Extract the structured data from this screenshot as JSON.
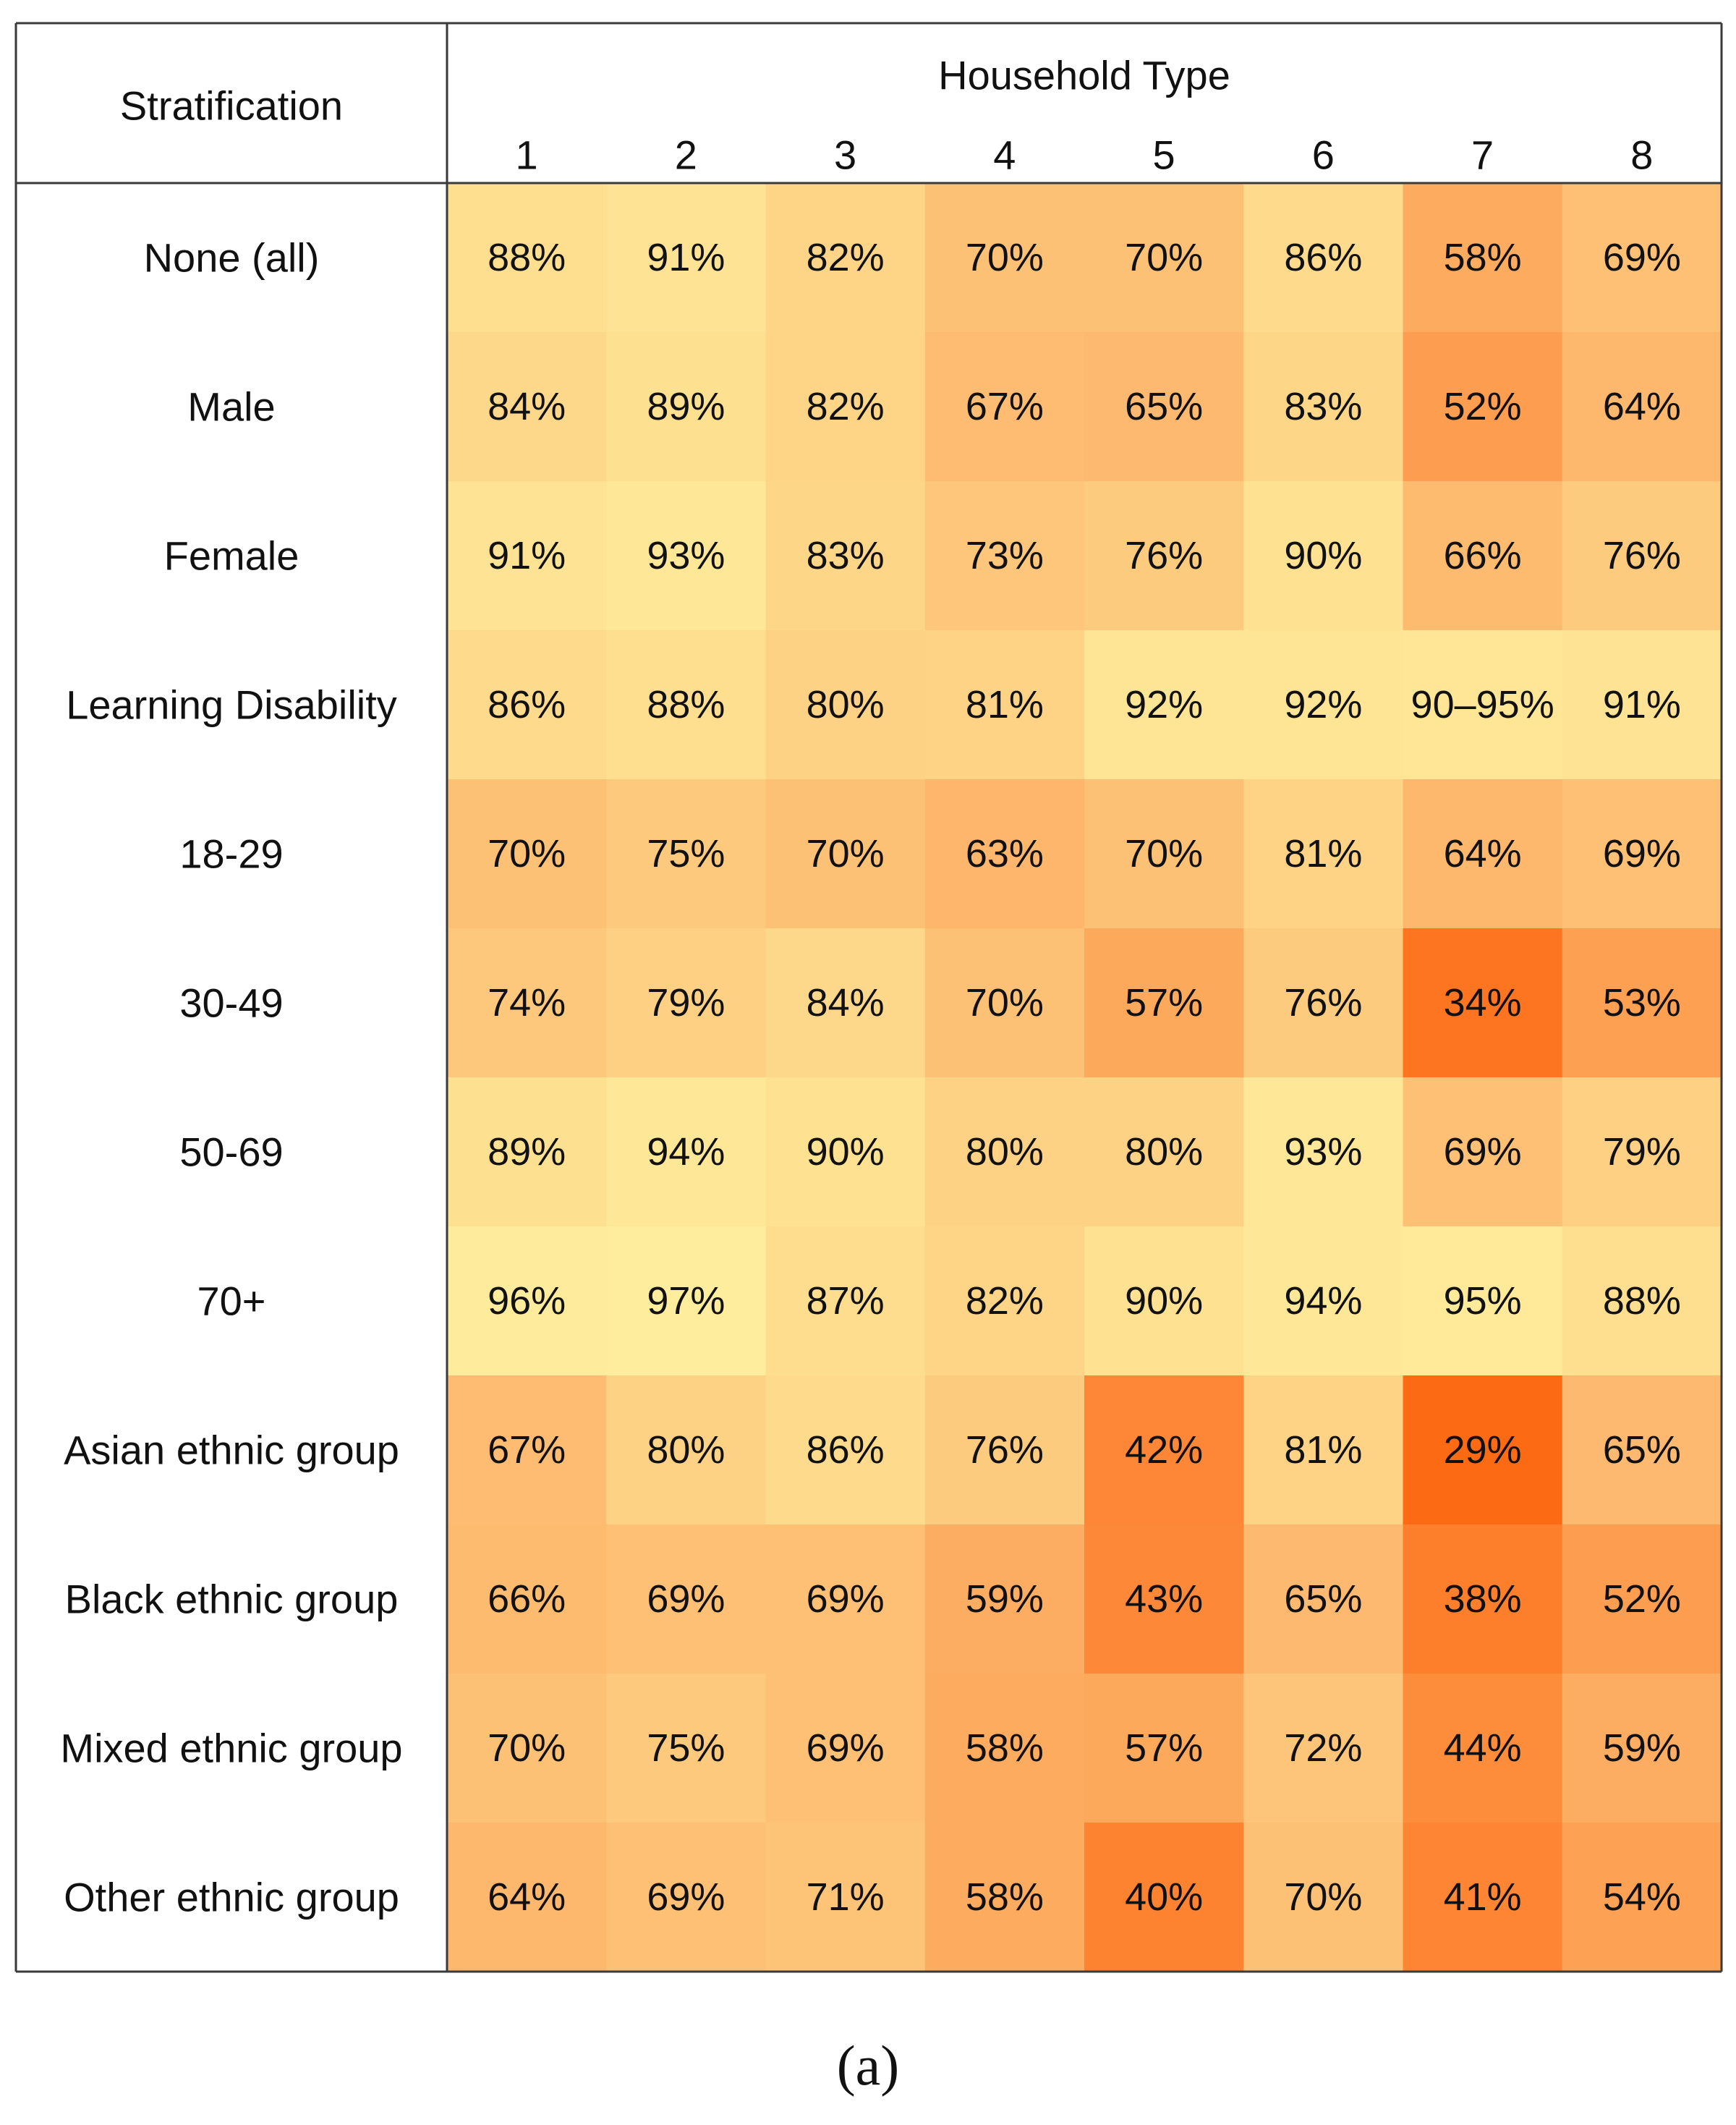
{
  "chart_data": {
    "type": "heatmap",
    "row_header": "Stratification",
    "column_header": "Household Type",
    "columns": [
      "1",
      "2",
      "3",
      "4",
      "5",
      "6",
      "7",
      "8"
    ],
    "rows": [
      {
        "label": "None (all)",
        "values": [
          "88%",
          "91%",
          "82%",
          "70%",
          "70%",
          "86%",
          "58%",
          "69%"
        ]
      },
      {
        "label": "Male",
        "values": [
          "84%",
          "89%",
          "82%",
          "67%",
          "65%",
          "83%",
          "52%",
          "64%"
        ]
      },
      {
        "label": "Female",
        "values": [
          "91%",
          "93%",
          "83%",
          "73%",
          "76%",
          "90%",
          "66%",
          "76%"
        ]
      },
      {
        "label": "Learning Disability",
        "values": [
          "86%",
          "88%",
          "80%",
          "81%",
          "92%",
          "92%",
          "90–95%",
          "91%"
        ]
      },
      {
        "label": "18-29",
        "values": [
          "70%",
          "75%",
          "70%",
          "63%",
          "70%",
          "81%",
          "64%",
          "69%"
        ]
      },
      {
        "label": "30-49",
        "values": [
          "74%",
          "79%",
          "84%",
          "70%",
          "57%",
          "76%",
          "34%",
          "53%"
        ]
      },
      {
        "label": "50-69",
        "values": [
          "89%",
          "94%",
          "90%",
          "80%",
          "80%",
          "93%",
          "69%",
          "79%"
        ]
      },
      {
        "label": "70+",
        "values": [
          "96%",
          "97%",
          "87%",
          "82%",
          "90%",
          "94%",
          "95%",
          "88%"
        ]
      },
      {
        "label": "Asian ethnic group",
        "values": [
          "67%",
          "80%",
          "86%",
          "76%",
          "42%",
          "81%",
          "29%",
          "65%"
        ]
      },
      {
        "label": "Black ethnic group",
        "values": [
          "66%",
          "69%",
          "69%",
          "59%",
          "43%",
          "65%",
          "38%",
          "52%"
        ]
      },
      {
        "label": "Mixed ethnic group",
        "values": [
          "70%",
          "75%",
          "69%",
          "58%",
          "57%",
          "72%",
          "44%",
          "59%"
        ]
      },
      {
        "label": "Other ethnic group",
        "values": [
          "64%",
          "69%",
          "71%",
          "58%",
          "40%",
          "70%",
          "41%",
          "54%"
        ]
      }
    ],
    "color_scale": {
      "low": "#fd6a14",
      "mid": "#fdb66c",
      "high": "#feed9c",
      "domain": [
        29,
        97
      ]
    }
  },
  "caption": "(a)"
}
